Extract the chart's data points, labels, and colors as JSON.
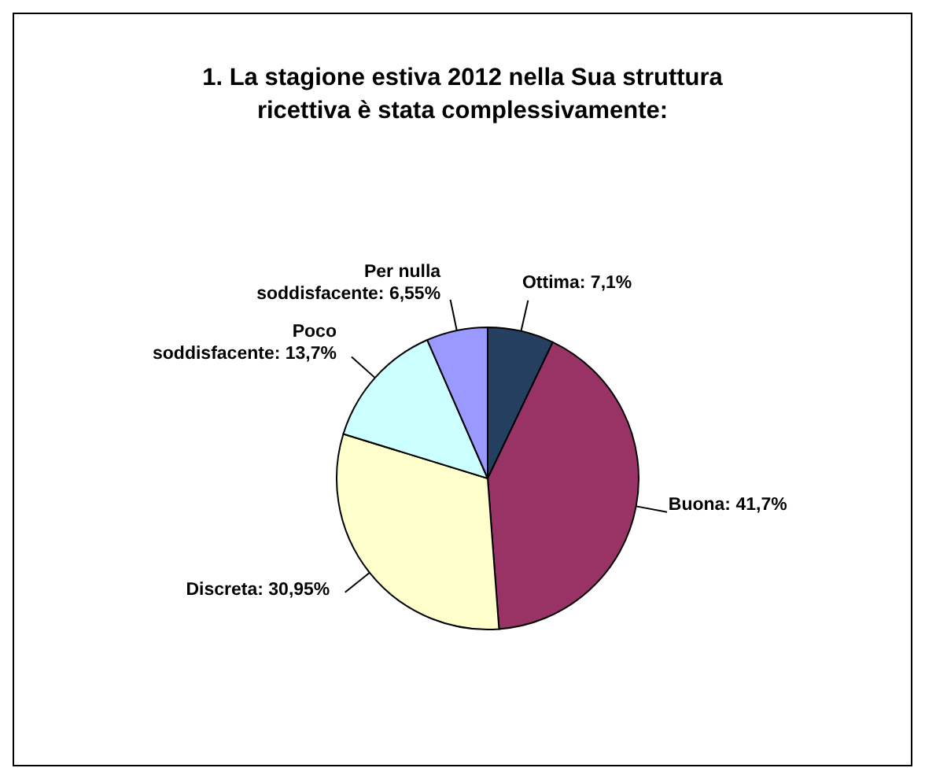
{
  "chart_data": {
    "type": "pie",
    "title": "1. La stagione estiva 2012 nella Sua struttura ricettiva è stata complessivamente:",
    "categories": [
      "Ottima",
      "Buona",
      "Discreta",
      "Poco soddisfacente",
      "Per nulla soddisfacente"
    ],
    "values": [
      7.1,
      41.7,
      30.95,
      13.7,
      6.55
    ],
    "value_labels": [
      "7,1%",
      "41,7%",
      "30,95%",
      "13,7%",
      "6,55%"
    ],
    "colors": [
      "#243f60",
      "#993366",
      "#ffffcc",
      "#ccffff",
      "#9999ff"
    ]
  }
}
